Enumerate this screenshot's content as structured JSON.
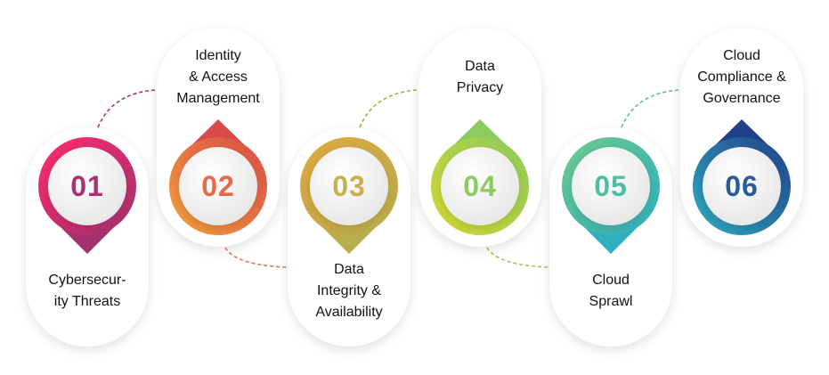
{
  "items": [
    {
      "number": "01",
      "label": [
        "Cybersecur-",
        "ity Threats"
      ],
      "position": "bottom",
      "colors": {
        "start": "#ff2a6d",
        "end": "#a3336f",
        "text": "#ab3172",
        "dash": "#b03070"
      }
    },
    {
      "number": "02",
      "label": [
        "Identity",
        "& Access",
        "Management"
      ],
      "position": "top",
      "colors": {
        "start": "#f5a23a",
        "end": "#d94a4a",
        "text": "#e8694a",
        "dash": "#e8704a"
      }
    },
    {
      "number": "03",
      "label": [
        "Data",
        "Integrity &",
        "Availability"
      ],
      "position": "bottom",
      "colors": {
        "start": "#e0a840",
        "end": "#b9ae4e",
        "text": "#c9ae4e",
        "dash": "#a8b040"
      }
    },
    {
      "number": "04",
      "label": [
        "Data",
        "Privacy"
      ],
      "position": "top",
      "colors": {
        "start": "#d7d930",
        "end": "#8ccb5e",
        "text": "#8ccb60",
        "dash": "#9cc850"
      }
    },
    {
      "number": "05",
      "label": [
        "Cloud",
        "Sprawl"
      ],
      "position": "bottom",
      "colors": {
        "start": "#6ccb8e",
        "end": "#2fb0c0",
        "text": "#4cc0a0",
        "dash": "#5cc090"
      }
    },
    {
      "number": "06",
      "label": [
        "Cloud",
        "Compliance &",
        "Governance"
      ],
      "position": "top",
      "colors": {
        "start": "#2fb0c4",
        "end": "#223f8a",
        "text": "#2a5b9c",
        "dash": "#2a5a9a"
      }
    }
  ]
}
